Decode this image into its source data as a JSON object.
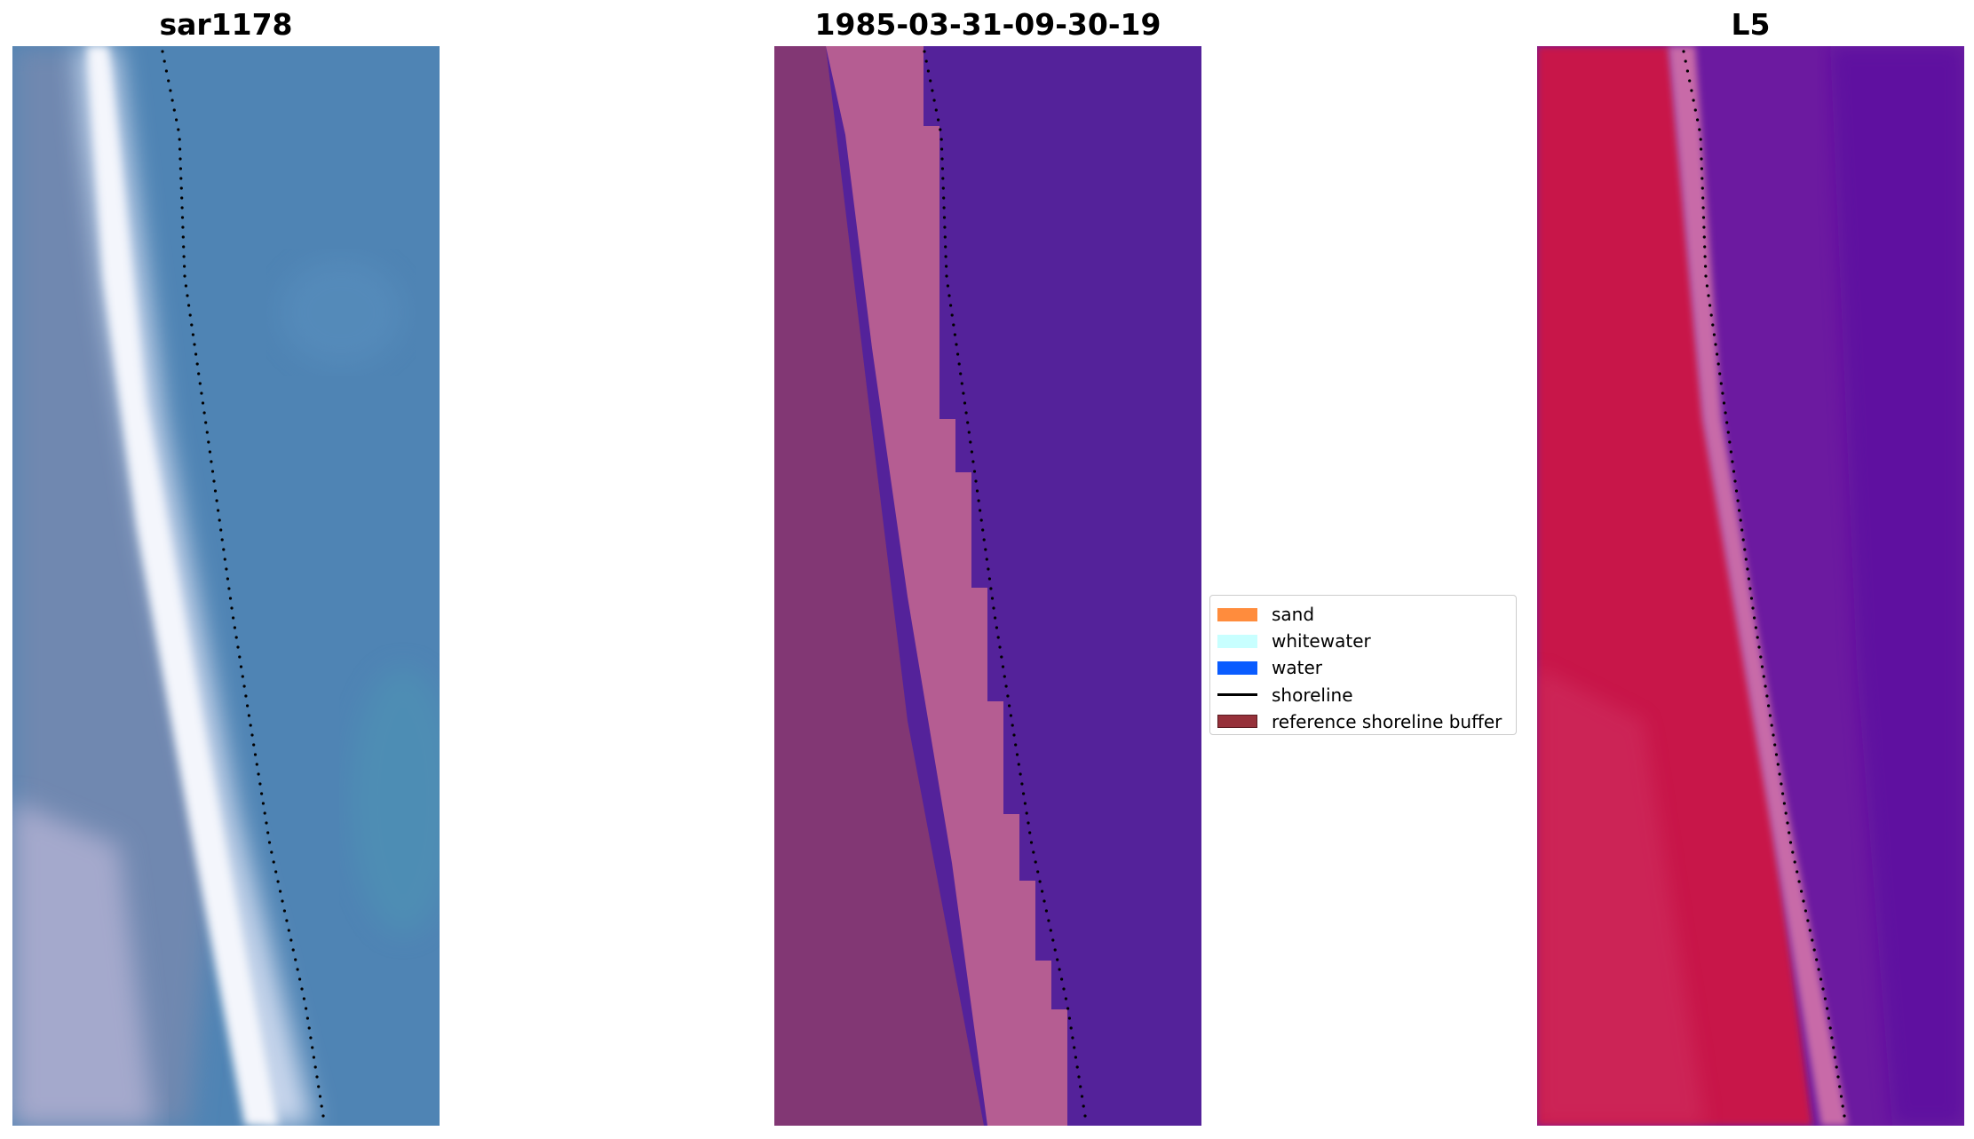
{
  "figure": {
    "titles": {
      "left": "sar1178",
      "center": "1985-03-31-09-30-19",
      "right": "L5"
    }
  },
  "legend": {
    "placement": "between center and right panels, vertically centered",
    "items": [
      {
        "label": "sand",
        "kind": "patch",
        "color": "#ff8c3d"
      },
      {
        "label": "whitewater",
        "kind": "patch",
        "color": "#c8ffff"
      },
      {
        "label": "water",
        "kind": "patch",
        "color": "#0a5cff"
      },
      {
        "label": "shoreline",
        "kind": "line",
        "color": "#000000"
      },
      {
        "label": "reference shoreline buffer",
        "kind": "patch",
        "color": "#96313a"
      }
    ]
  },
  "colors": {
    "rgb_water": "#4f84b4",
    "rgb_water_alt": "#4d8fb8",
    "rgb_land": "#7088b0",
    "rgb_surf": "#f4f6fc",
    "class_water": "#54229a",
    "class_land": "#823774",
    "class_sand": "#b55d92",
    "ndwi_land": "#c8124a",
    "ndwi_land_alt": "#d03064",
    "ndwi_water": "#6c1aa0",
    "ndwi_water_alt": "#5a0aa0",
    "ndwi_transition": "#c86aa8",
    "shoreline": "#000000"
  }
}
